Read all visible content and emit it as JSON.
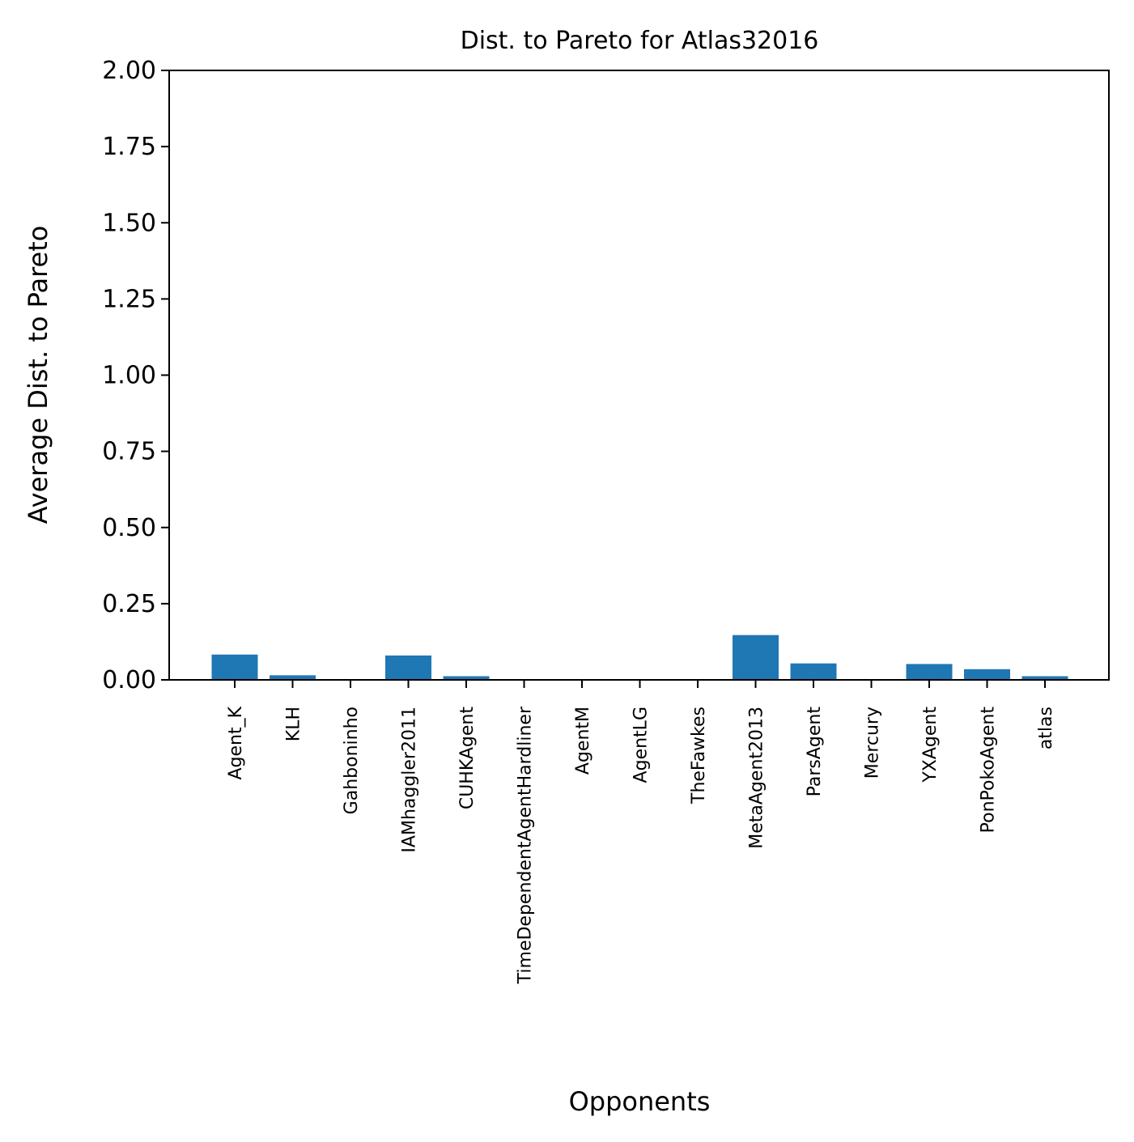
{
  "chart_data": {
    "type": "bar",
    "title": "Dist. to Pareto for Atlas32016",
    "xlabel": "Opponents",
    "ylabel": "Average Dist. to Pareto",
    "ylim": [
      0,
      2.0
    ],
    "yticks": [
      "0.00",
      "0.25",
      "0.50",
      "0.75",
      "1.00",
      "1.25",
      "1.50",
      "1.75",
      "2.00"
    ],
    "grid": false,
    "bar_color": "#1f77b4",
    "categories": [
      "Agent_K",
      "KLH",
      "Gahboninho",
      "IAMhaggler2011",
      "CUHKAgent",
      "TimeDependentAgentHardliner",
      "AgentM",
      "AgentLG",
      "TheFawkes",
      "MetaAgent2013",
      "ParsAgent",
      "Mercury",
      "YXAgent",
      "PonPokoAgent",
      "atlas"
    ],
    "values": [
      0.083,
      0.015,
      0.0,
      0.08,
      0.012,
      0.0,
      0.0,
      0.0,
      0.0,
      0.147,
      0.054,
      0.0,
      0.052,
      0.035,
      0.012
    ]
  }
}
